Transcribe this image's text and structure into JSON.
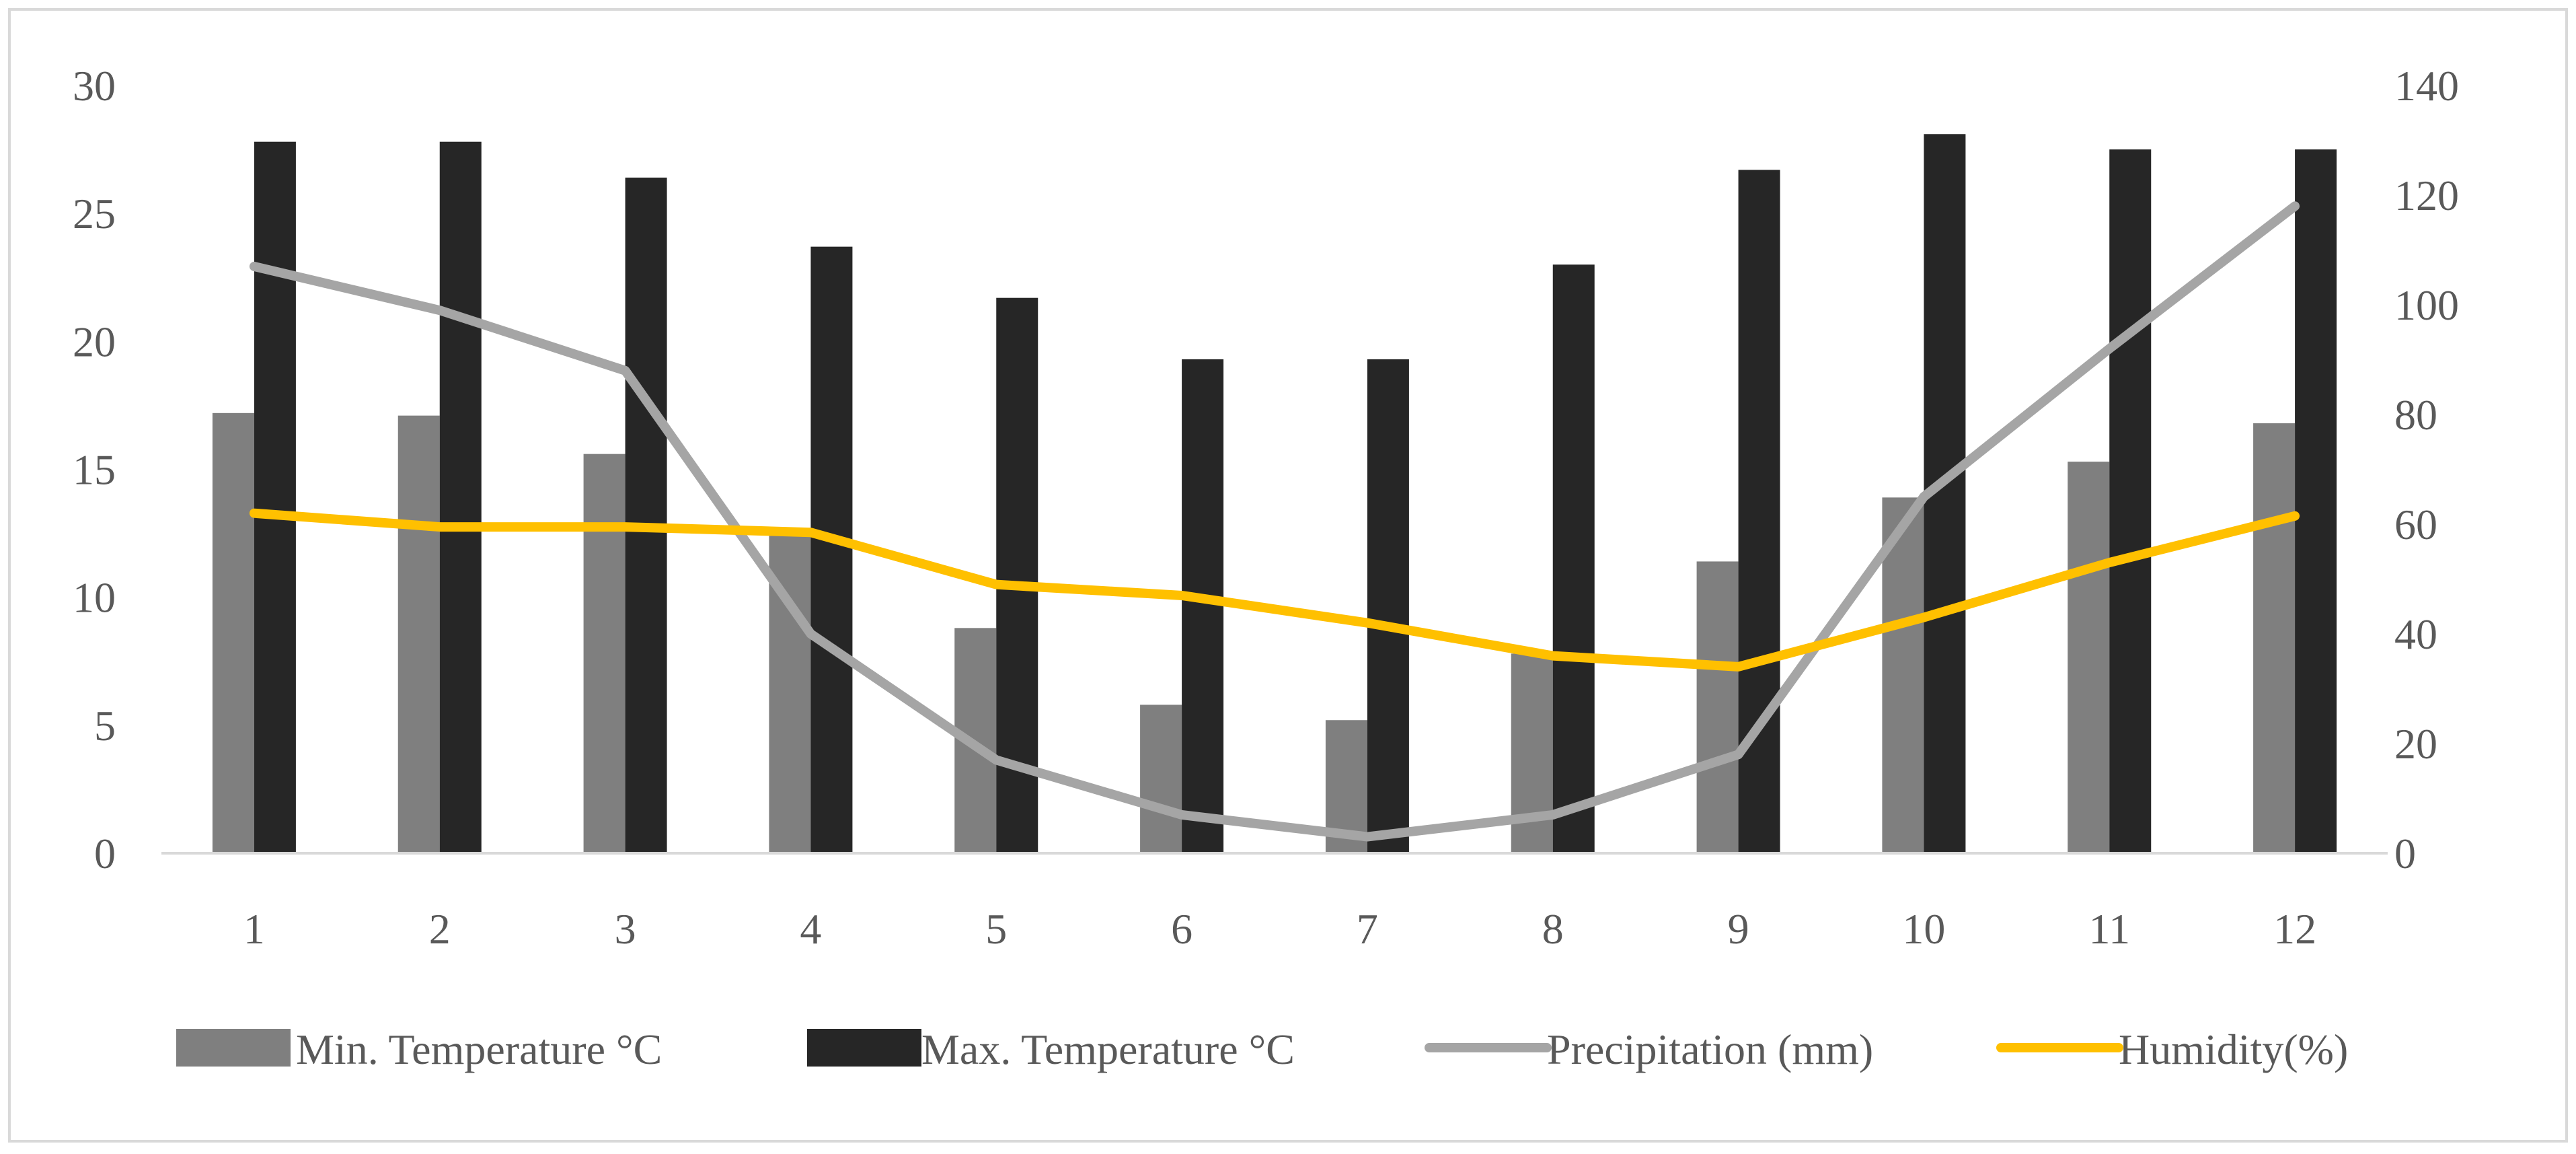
{
  "chart_data": {
    "type": "bar",
    "categories": [
      "1",
      "2",
      "3",
      "4",
      "5",
      "6",
      "7",
      "8",
      "9",
      "10",
      "11",
      "12"
    ],
    "y_left": {
      "ticks": [
        "0",
        "5",
        "10",
        "15",
        "20",
        "25",
        "30"
      ],
      "range": [
        0,
        30
      ]
    },
    "y_right": {
      "ticks": [
        "0",
        "20",
        "40",
        "60",
        "80",
        "100",
        "120",
        "140"
      ],
      "range": [
        0,
        140
      ]
    },
    "grid": false,
    "legend_position": "bottom",
    "series": [
      {
        "name": "Min. Temperature °C",
        "kind": "bar",
        "axis": "left",
        "color": "#7f7f7f",
        "values": [
          17.2,
          17.1,
          15.6,
          12.4,
          8.8,
          5.8,
          5.2,
          7.8,
          11.4,
          13.9,
          15.3,
          16.8
        ]
      },
      {
        "name": "Max. Temperature °C",
        "kind": "bar",
        "axis": "left",
        "color": "#262626",
        "values": [
          27.8,
          27.8,
          26.4,
          23.7,
          21.7,
          19.3,
          19.3,
          23.0,
          26.7,
          28.1,
          27.5,
          27.5
        ]
      },
      {
        "name": "Precipitation (mm)",
        "kind": "line",
        "axis": "right",
        "color": "#a5a5a5",
        "values": [
          107,
          99,
          88,
          40,
          17,
          7,
          3,
          7,
          18,
          65,
          92,
          118
        ]
      },
      {
        "name": "Humidity(%)",
        "kind": "line",
        "axis": "right",
        "color": "#ffc000",
        "values": [
          62,
          59.5,
          59.5,
          58.5,
          49,
          47,
          42,
          36,
          34,
          43,
          53,
          61.5
        ]
      }
    ]
  }
}
